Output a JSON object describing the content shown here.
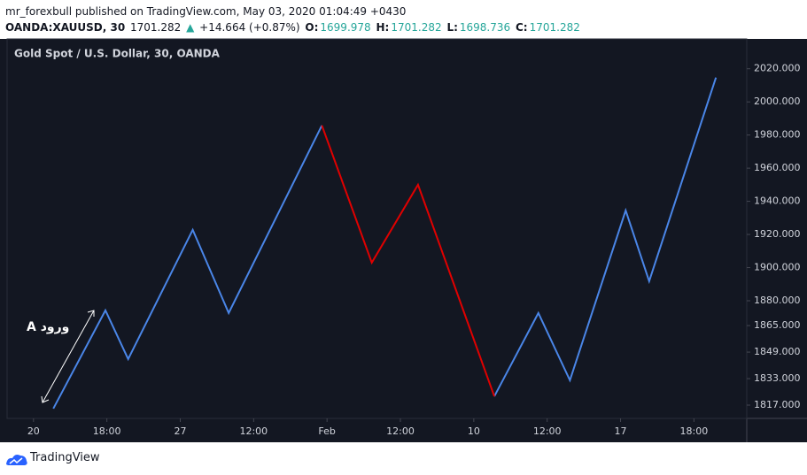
{
  "header": {
    "publish_line": "mr_forexbull published on TradingView.com, May 03, 2020 01:04:49 +0430",
    "symbol": "OANDA:XAUUSD, 30",
    "last": "1701.282",
    "change_arrow": "▲",
    "change": "+14.664 (+0.87%)",
    "open_label": "O:",
    "open": "1699.978",
    "high_label": "H:",
    "high": "1701.282",
    "low_label": "L:",
    "low": "1698.736",
    "close_label": "C:",
    "close": "1701.282"
  },
  "footer": {
    "brand": "TradingView"
  },
  "chart_data": {
    "type": "line",
    "title": "Gold Spot / U.S. Dollar, 30, OANDA",
    "annotation": "A ورود",
    "x": [
      0.27,
      0.98,
      1.29,
      2.17,
      2.66,
      3.93,
      4.61,
      5.24,
      6.28,
      6.88,
      7.31,
      8.07,
      8.39,
      9.3
    ],
    "series": [
      {
        "color": "#4a86e8",
        "values": [
          1814.9,
          1874.2,
          1844.8,
          1922.8,
          1872.6,
          1985.8,
          null,
          null,
          1822.3,
          1872.6,
          1832.0,
          1934.5,
          1891.8,
          2014.7
        ]
      },
      {
        "color": "#e00000",
        "values": [
          null,
          null,
          null,
          null,
          null,
          1985.8,
          1903.0,
          1950.0,
          1822.3,
          null,
          null,
          null,
          null,
          null
        ]
      }
    ],
    "xlim": [
      -0.36,
      9.72
    ],
    "xticks": [
      {
        "value": 0,
        "label": "20"
      },
      {
        "value": 1,
        "label": "18:00"
      },
      {
        "value": 2,
        "label": "27"
      },
      {
        "value": 3,
        "label": "12:00"
      },
      {
        "value": 4,
        "label": "Feb"
      },
      {
        "value": 5,
        "label": "12:00"
      },
      {
        "value": 6,
        "label": "10"
      },
      {
        "value": 7,
        "label": "12:00"
      },
      {
        "value": 8,
        "label": "17"
      },
      {
        "value": 9,
        "label": "18:00"
      }
    ],
    "ylim": [
      1809,
      2038
    ],
    "yticks": [
      {
        "value": 1817,
        "label": "1817.000"
      },
      {
        "value": 1833,
        "label": "1833.000"
      },
      {
        "value": 1849,
        "label": "1849.000"
      },
      {
        "value": 1865,
        "label": "1865.000"
      },
      {
        "value": 1880,
        "label": "1880.000"
      },
      {
        "value": 1900,
        "label": "1900.000"
      },
      {
        "value": 1920,
        "label": "1920.000"
      },
      {
        "value": 1940,
        "label": "1940.000"
      },
      {
        "value": 1960,
        "label": "1960.000"
      },
      {
        "value": 1980,
        "label": "1980.000"
      },
      {
        "value": 2000,
        "label": "2000.000"
      },
      {
        "value": 2020,
        "label": "2020.000"
      }
    ],
    "grid": false
  }
}
